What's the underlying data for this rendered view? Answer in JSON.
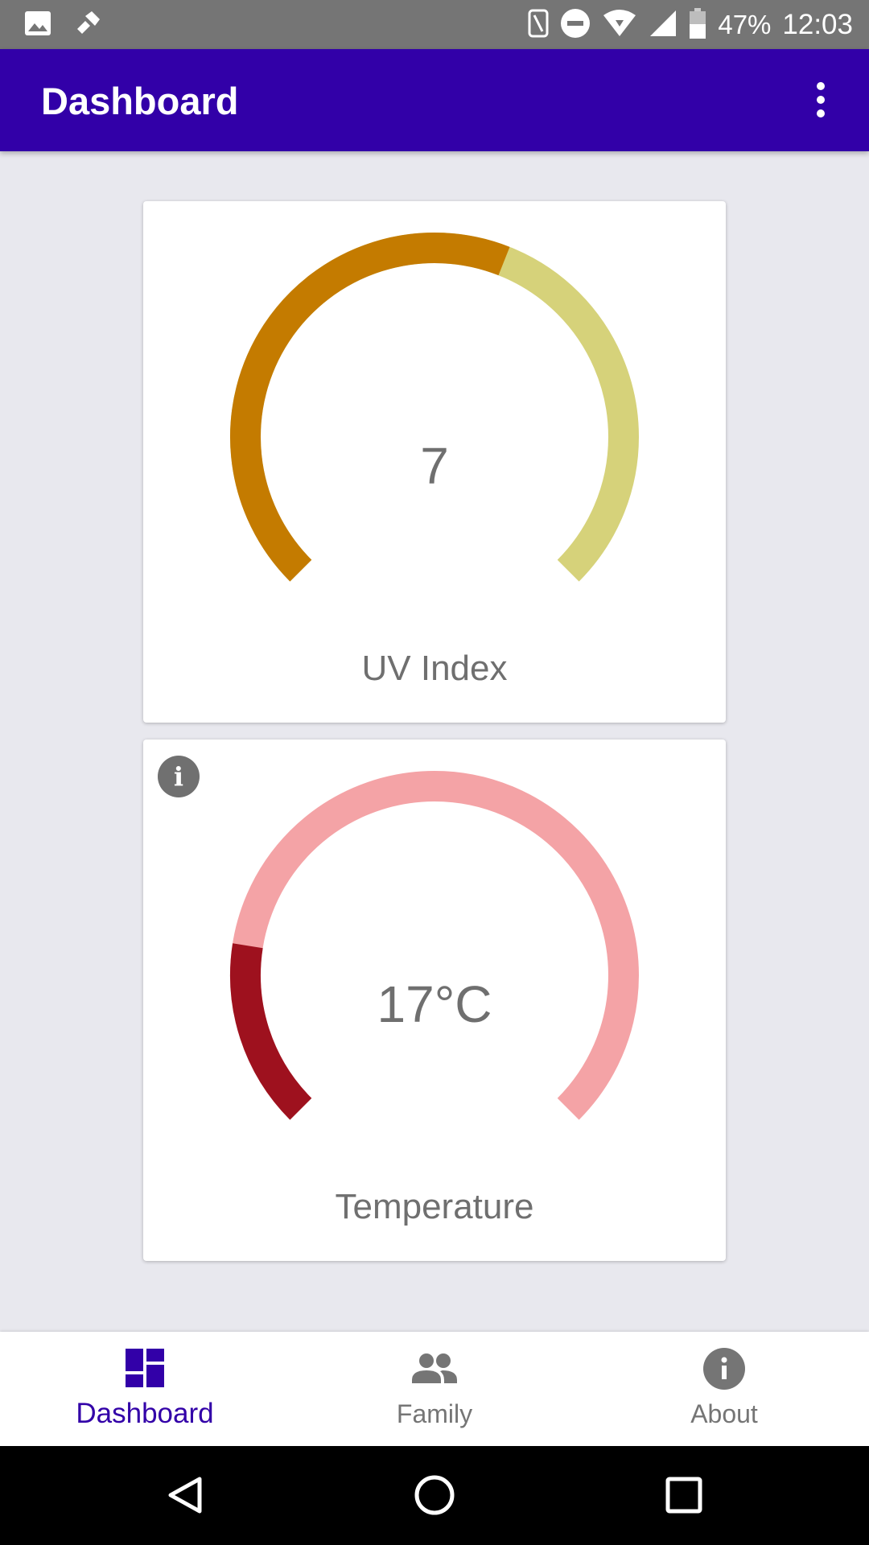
{
  "status_bar": {
    "battery": "47%",
    "time": "12:03",
    "icons": [
      "image-icon",
      "tool-icon",
      "nfc-icon",
      "do-not-disturb-icon",
      "wifi-icon",
      "signal-icon",
      "battery-icon"
    ]
  },
  "app_bar": {
    "title": "Dashboard",
    "overflow_icon": "more-vert-icon"
  },
  "cards": [
    {
      "label": "UV Index",
      "value": "7",
      "gauge_fraction": 0.58,
      "fill_color": "#c47b00",
      "track_color": "#d6d27a",
      "info_icon": false
    },
    {
      "label": "Temperature",
      "value": "17°C",
      "gauge_fraction": 0.2,
      "fill_color": "#9e111e",
      "track_color": "#f4a3a6",
      "info_icon": true
    }
  ],
  "bottom_nav": {
    "items": [
      {
        "label": "Dashboard",
        "icon": "dashboard-icon",
        "active": true
      },
      {
        "label": "Family",
        "icon": "people-icon",
        "active": false
      },
      {
        "label": "About",
        "icon": "info-icon",
        "active": false
      }
    ]
  },
  "colors": {
    "primary": "#3200a8",
    "background": "#e8e8ee",
    "text_secondary": "#6f6f6f"
  },
  "system_nav": [
    "back-icon",
    "home-icon",
    "recents-icon"
  ]
}
